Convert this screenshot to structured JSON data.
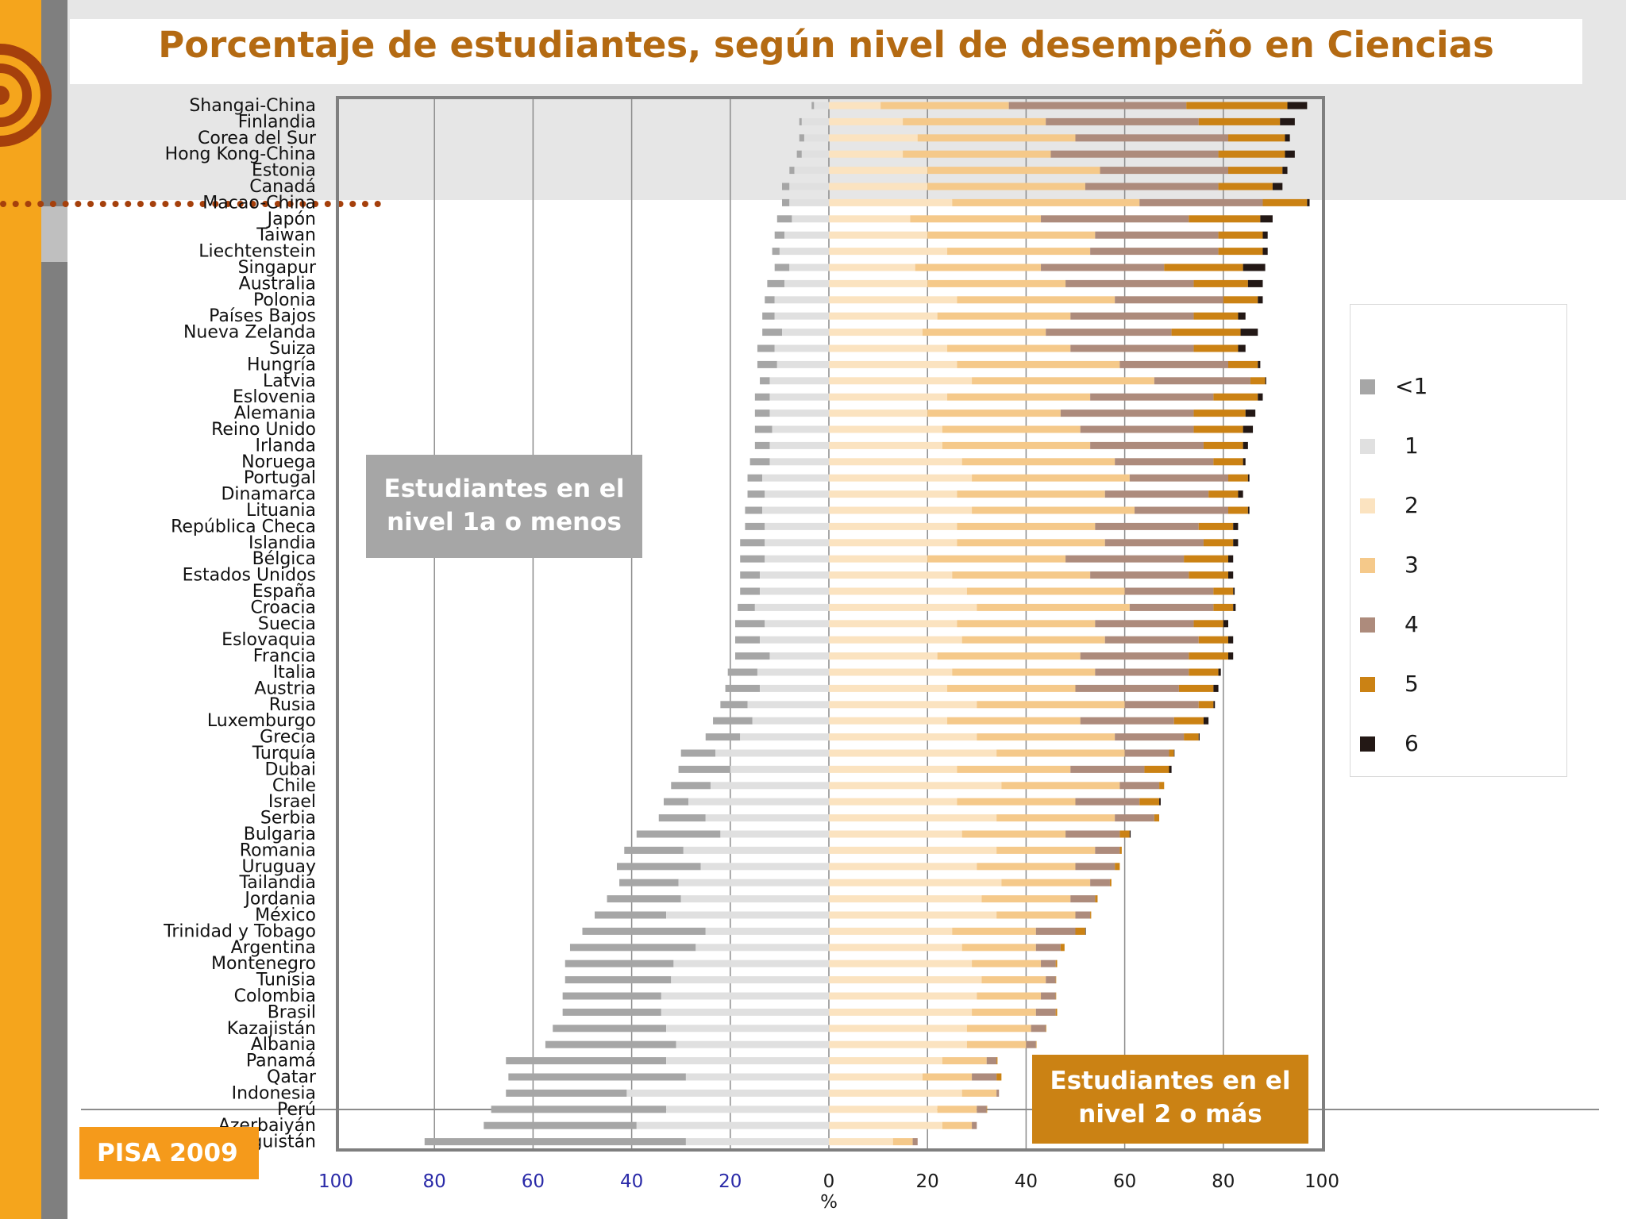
{
  "title": "Porcentaje de estudiantes, según nivel de desempeño en Ciencias",
  "badge": "PISA 2009",
  "callouts": {
    "left_line1": "Estudiantes en el",
    "left_line2": "nivel 1a o menos",
    "right_line1": "Estudiantes en el",
    "right_line2": "nivel 2 o más"
  },
  "colors": {
    "accent_orange": "#f5a51c",
    "title": "#b46a12",
    "tick_negative": "#2a2aa8",
    "tick_positive": "#1a1a1a"
  },
  "legend": {
    "placement": "right",
    "items": [
      {
        "label": "<1",
        "color": "#a6a6a6"
      },
      {
        "label": "1",
        "color": "#e0e0e0"
      },
      {
        "label": "2",
        "color": "#fbe3c0"
      },
      {
        "label": "3",
        "color": "#f5c98a"
      },
      {
        "label": "4",
        "color": "#ad8b7c"
      },
      {
        "label": "5",
        "color": "#cb8214"
      },
      {
        "label": "6",
        "color": "#231815"
      }
    ]
  },
  "chart_data": {
    "type": "bar",
    "orientation": "horizontal-stacked-diverging",
    "xlabel": "%",
    "xlim": [
      -100,
      100
    ],
    "xticks": [
      -100,
      -80,
      -60,
      -40,
      -20,
      0,
      20,
      40,
      60,
      80,
      100
    ],
    "xtick_labels": [
      "100",
      "80",
      "60",
      "40",
      "20",
      "0",
      "20",
      "40",
      "60",
      "80",
      "100"
    ],
    "grid": true,
    "series_order_negative": [
      "<1",
      "1"
    ],
    "series_order_positive": [
      "2",
      "3",
      "4",
      "5",
      "6"
    ],
    "categories": [
      "Shangai-China",
      "Finlandia",
      "Corea del Sur",
      "Hong Kong-China",
      "Estonia",
      "Canadá",
      "Macao-China",
      "Japón",
      "Taiwan",
      "Liechtenstein",
      "Singapur",
      "Australia",
      "Polonia",
      "Países Bajos",
      "Nueva Zelanda",
      "Suiza",
      "Hungría",
      "Latvia",
      "Eslovenia",
      "Alemania",
      "Reino Unido",
      "Irlanda",
      "Noruega",
      "Portugal",
      "Dinamarca",
      "Lituania",
      "República Checa",
      "Islandia",
      "Bélgica",
      "Estados Unidos",
      "España",
      "Croacia",
      "Suecia",
      "Eslovaquia",
      "Francia",
      "Italia",
      "Austria",
      "Rusia",
      "Luxemburgo",
      "Grecia",
      "Turquía",
      "Dubai",
      "Chile",
      "Israel",
      "Serbia",
      "Bulgaria",
      "Romania",
      "Uruguay",
      "Tailandia",
      "Jordania",
      "México",
      "Trinidad y Tobago",
      "Argentina",
      "Montenegro",
      "Tunisia",
      "Colombia",
      "Brasil",
      "Kazajistán",
      "Albania",
      "Panamá",
      "Qatar",
      "Indonesia",
      "Perú",
      "Azerbaiyán",
      "Kirguistán"
    ],
    "values": [
      [
        0.5,
        3,
        10.5,
        26,
        36,
        20.5,
        4
      ],
      [
        0.5,
        5.5,
        15,
        29,
        31,
        16.5,
        3
      ],
      [
        1,
        5,
        18,
        32,
        31,
        11.5,
        1
      ],
      [
        1,
        5.5,
        15,
        30,
        34,
        13.5,
        2
      ],
      [
        1,
        7,
        20,
        35,
        26,
        11,
        1
      ],
      [
        1.5,
        8,
        20,
        32,
        27,
        11,
        2
      ],
      [
        1.5,
        8,
        25,
        38,
        25,
        9,
        0.5
      ],
      [
        3,
        7.5,
        16.5,
        26.5,
        30,
        14.5,
        2.5
      ],
      [
        2,
        9,
        20,
        34,
        25,
        9,
        1
      ],
      [
        1.5,
        10,
        24,
        29,
        26,
        9,
        1
      ],
      [
        3,
        8,
        17.5,
        25.5,
        25,
        16,
        4.5
      ],
      [
        3.5,
        9,
        20,
        28,
        26,
        11,
        3
      ],
      [
        2,
        11,
        26,
        32,
        22,
        7,
        1
      ],
      [
        2.5,
        11,
        22,
        27,
        25,
        9,
        1.5
      ],
      [
        4,
        9.5,
        19,
        25,
        25.5,
        14,
        3.5
      ],
      [
        3.5,
        11,
        24,
        25,
        25,
        9,
        1.5
      ],
      [
        4,
        10.5,
        26,
        33,
        22,
        6,
        0.5
      ],
      [
        2,
        12,
        29,
        37,
        19.5,
        3,
        0.2
      ],
      [
        3,
        12,
        24,
        29,
        25,
        9,
        1
      ],
      [
        3,
        12,
        20,
        27,
        27,
        10.5,
        2
      ],
      [
        3.5,
        11.5,
        23,
        28,
        23,
        10,
        2
      ],
      [
        3,
        12,
        23,
        30,
        23,
        8,
        1
      ],
      [
        4,
        12,
        27,
        31,
        20,
        6,
        0.5
      ],
      [
        3,
        13.5,
        29,
        32,
        20,
        4,
        0.3
      ],
      [
        3.5,
        13,
        26,
        30,
        21,
        6,
        1
      ],
      [
        3.5,
        13.5,
        29,
        33,
        19,
        4,
        0.3
      ],
      [
        4,
        13,
        26,
        28,
        21,
        7,
        1
      ],
      [
        5,
        13,
        26,
        30,
        20,
        6,
        1
      ],
      [
        5,
        13,
        20,
        28,
        24,
        9,
        1
      ],
      [
        4,
        14,
        25,
        28,
        20,
        8,
        1
      ],
      [
        4,
        14,
        28,
        32,
        18,
        4,
        0.3
      ],
      [
        3.5,
        15,
        30,
        31,
        17,
        4,
        0.5
      ],
      [
        6,
        13,
        26,
        28,
        20,
        6,
        1
      ],
      [
        5,
        14,
        27,
        29,
        19,
        6,
        1
      ],
      [
        7,
        12,
        22,
        29,
        22,
        8,
        1
      ],
      [
        6,
        14.5,
        25,
        29,
        19,
        6,
        0.5
      ],
      [
        7,
        14,
        24,
        26,
        21,
        7,
        1
      ],
      [
        5.5,
        16.5,
        30,
        30,
        15,
        3,
        0.3
      ],
      [
        8,
        15.5,
        24,
        27,
        19,
        6,
        1
      ],
      [
        7,
        18,
        30,
        28,
        14,
        3,
        0.2
      ],
      [
        7,
        23,
        34,
        26,
        9,
        1,
        0.1
      ],
      [
        10.5,
        20,
        26,
        23,
        15,
        5,
        0.5
      ],
      [
        8,
        24,
        35,
        24,
        8,
        1,
        0
      ],
      [
        5,
        28.5,
        26,
        24,
        13,
        4,
        0.3
      ],
      [
        9.5,
        25,
        34,
        24,
        8,
        1,
        0
      ],
      [
        17,
        22,
        27,
        21,
        11,
        2,
        0.2
      ],
      [
        12,
        29.5,
        34,
        20,
        5,
        0.4,
        0
      ],
      [
        17,
        26,
        30,
        20,
        8,
        1,
        0
      ],
      [
        12,
        30.5,
        35,
        18,
        4,
        0.3,
        0
      ],
      [
        15,
        30,
        31,
        18,
        5,
        0.5,
        0
      ],
      [
        14.5,
        33,
        34,
        16,
        3,
        0.2,
        0
      ],
      [
        25,
        25,
        25,
        17,
        8,
        2,
        0.1
      ],
      [
        25.5,
        27,
        27,
        15,
        5,
        0.8,
        0
      ],
      [
        22,
        31.5,
        29,
        14,
        3,
        0.3,
        0
      ],
      [
        21.5,
        32,
        31,
        13,
        2,
        0.1,
        0
      ],
      [
        20,
        34,
        30,
        13,
        3,
        0.1,
        0
      ],
      [
        20,
        34,
        29,
        13,
        4,
        0.3,
        0
      ],
      [
        23,
        33,
        28,
        13,
        3,
        0.1,
        0
      ],
      [
        26.5,
        31,
        28,
        12,
        2,
        0.1,
        0
      ],
      [
        32.5,
        33,
        23,
        9,
        2,
        0.2,
        0
      ],
      [
        36,
        29,
        19,
        10,
        5,
        1,
        0
      ],
      [
        24.5,
        41,
        27,
        7,
        0.5,
        0,
        0
      ],
      [
        35.5,
        33,
        22,
        8,
        2,
        0.1,
        0
      ],
      [
        31,
        39,
        23,
        6,
        1,
        0,
        0
      ],
      [
        53,
        29,
        13,
        4,
        1,
        0,
        0
      ]
    ]
  }
}
